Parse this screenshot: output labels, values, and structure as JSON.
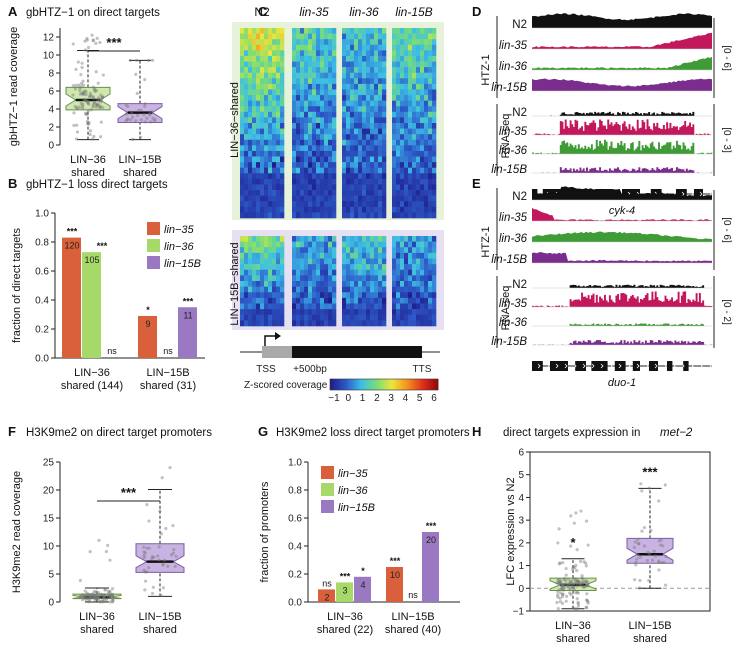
{
  "colors": {
    "green": "#a6d96a",
    "greenFill": "#cfe8b0",
    "purple": "#9a79c2",
    "purpleFill": "#c9b3e3",
    "orange": "#d9603b",
    "black": "#111111",
    "magenta": "#c2185b",
    "trackGreen": "#3f9b35",
    "trackPurple": "#7b2d8e",
    "bgGreen": "#e6f2da",
    "bgPurple": "#e7e0f2"
  },
  "panels": {
    "A": "A",
    "B": "B",
    "C": "C",
    "D": "D",
    "E": "E",
    "F": "F",
    "G": "G",
    "H": "H"
  },
  "chart_data": [
    {
      "id": "A",
      "type": "box",
      "title": "gbHTZ−1 on direct targets",
      "ylabel": "gbHTZ−1 read coverage",
      "ylim": [
        0,
        13
      ],
      "yticks": [
        "0",
        "2",
        "4",
        "6",
        "8",
        "10",
        "12"
      ],
      "categories": [
        "LIN−36\nshared",
        "LIN−15B\nshared"
      ],
      "boxes": [
        {
          "label1": "LIN−36",
          "label2": "shared",
          "whisker_low": 0.6,
          "q1": 3.9,
          "median": 5.0,
          "q3": 6.4,
          "whisker_high": 10.5,
          "max": 12.2
        },
        {
          "label1": "LIN−15B",
          "label2": "shared",
          "whisker_low": 0.6,
          "q1": 2.5,
          "median": 3.6,
          "q3": 4.6,
          "whisker_high": 9.4,
          "max": 9.4
        }
      ],
      "significance": "***"
    },
    {
      "id": "B",
      "type": "bar",
      "title": "gbHTZ−1 loss direct targets",
      "ylabel": "fraction of direct targets",
      "ylim": [
        0,
        1.0
      ],
      "yticks": [
        "0.0",
        "0.2",
        "0.4",
        "0.6",
        "0.8",
        "1.0"
      ],
      "legend": [
        "lin−35",
        "lin−36",
        "lin−15B"
      ],
      "groups": [
        {
          "label1": "LIN−36",
          "label2": "shared (144)",
          "bars": [
            {
              "series": "lin−35",
              "value": 0.83,
              "count": "120",
              "sig": "***"
            },
            {
              "series": "lin−36",
              "value": 0.73,
              "count": "105",
              "sig": "***"
            },
            {
              "series": "lin−15B",
              "value": 0.0,
              "count": "",
              "sig": "ns"
            }
          ]
        },
        {
          "label1": "LIN−15B",
          "label2": "shared (31)",
          "bars": [
            {
              "series": "lin−35",
              "value": 0.29,
              "count": "9",
              "sig": "*"
            },
            {
              "series": "lin−36",
              "value": 0.0,
              "count": "",
              "sig": "ns"
            },
            {
              "series": "lin−15B",
              "value": 0.35,
              "count": "11",
              "sig": "***"
            }
          ]
        }
      ]
    },
    {
      "id": "C",
      "type": "heatmap",
      "columns": [
        "N2",
        "lin-35",
        "lin-36",
        "lin-15B"
      ],
      "row_groups": [
        "LIN−36−shared",
        "LIN−15B−shared"
      ],
      "gene_model": {
        "tss": "TSS",
        "plus": "+500bp",
        "tts": "TTS"
      },
      "colorbar_label": "Z-scored coverage",
      "colorbar_ticks": [
        "−1",
        "0",
        "1",
        "2",
        "3",
        "4",
        "5",
        "6"
      ]
    },
    {
      "id": "D",
      "type": "tracks",
      "gene": "cyk-4",
      "group1": "HTZ-1",
      "group2": "RNA-seq",
      "range1": "[0 - 6]",
      "range2": "[0 - 3]",
      "tracks": [
        "N2",
        "lin-35",
        "lin-36",
        "lin-15B"
      ]
    },
    {
      "id": "E",
      "type": "tracks",
      "gene": "duo-1",
      "group1": "HTZ-1",
      "group2": "RNA-seq",
      "range1": "[0 - 6]",
      "range2": "[0 - 2]",
      "tracks": [
        "N2",
        "lin-35",
        "lin-36",
        "lin-15B"
      ]
    },
    {
      "id": "F",
      "type": "box",
      "title": "H3K9me2 on direct target promoters",
      "ylabel": "H3K9me2 read coverage",
      "ylim": [
        0,
        25
      ],
      "yticks": [
        "0",
        "5",
        "10",
        "15",
        "20",
        "25"
      ],
      "boxes": [
        {
          "label1": "LIN−36",
          "label2": "shared",
          "whisker_low": 0.0,
          "q1": 0.6,
          "median": 0.9,
          "q3": 1.4,
          "whisker_high": 2.5,
          "max": 11.0
        },
        {
          "label1": "LIN−15B",
          "label2": "shared",
          "whisker_low": 1.0,
          "q1": 5.3,
          "median": 7.2,
          "q3": 10.4,
          "whisker_high": 20.1,
          "max": 24.0
        }
      ],
      "significance": "***"
    },
    {
      "id": "G",
      "type": "bar",
      "title": "H3K9me2 loss direct target promoters",
      "ylabel": "fraction of promoters",
      "ylim": [
        0,
        1.0
      ],
      "yticks": [
        "0.0",
        "0.2",
        "0.4",
        "0.6",
        "0.8",
        "1.0"
      ],
      "legend": [
        "lin−35",
        "lin−36",
        "lin−15B"
      ],
      "groups": [
        {
          "label1": "LIN−36",
          "label2": "shared (22)",
          "bars": [
            {
              "series": "lin−35",
              "value": 0.09,
              "count": "2",
              "sig": "ns"
            },
            {
              "series": "lin−36",
              "value": 0.14,
              "count": "3",
              "sig": "***"
            },
            {
              "series": "lin−15B",
              "value": 0.18,
              "count": "4",
              "sig": "*"
            }
          ]
        },
        {
          "label1": "LIN−15B",
          "label2": "shared (40)",
          "bars": [
            {
              "series": "lin−35",
              "value": 0.25,
              "count": "10",
              "sig": "***"
            },
            {
              "series": "lin−36",
              "value": 0.0,
              "count": "",
              "sig": "ns"
            },
            {
              "series": "lin−15B",
              "value": 0.5,
              "count": "20",
              "sig": "***"
            }
          ]
        }
      ]
    },
    {
      "id": "H",
      "type": "box",
      "title": "direct targets expression in",
      "title_gene": "met−2",
      "ylabel": "LFC expression vs N2",
      "ylim": [
        -1,
        6
      ],
      "yticks": [
        "−1",
        "0",
        "1",
        "2",
        "3",
        "4",
        "5",
        "6"
      ],
      "boxes": [
        {
          "label1": "LIN−36",
          "label2": "shared",
          "whisker_low": -0.9,
          "q1": -0.1,
          "median": 0.15,
          "q3": 0.45,
          "whisker_high": 1.3,
          "max": 3.4,
          "sig": "*"
        },
        {
          "label1": "LIN−15B",
          "label2": "shared",
          "whisker_low": 0.0,
          "q1": 1.1,
          "median": 1.5,
          "q3": 2.2,
          "whisker_high": 4.4,
          "max": 4.6,
          "sig": "***"
        }
      ]
    }
  ]
}
